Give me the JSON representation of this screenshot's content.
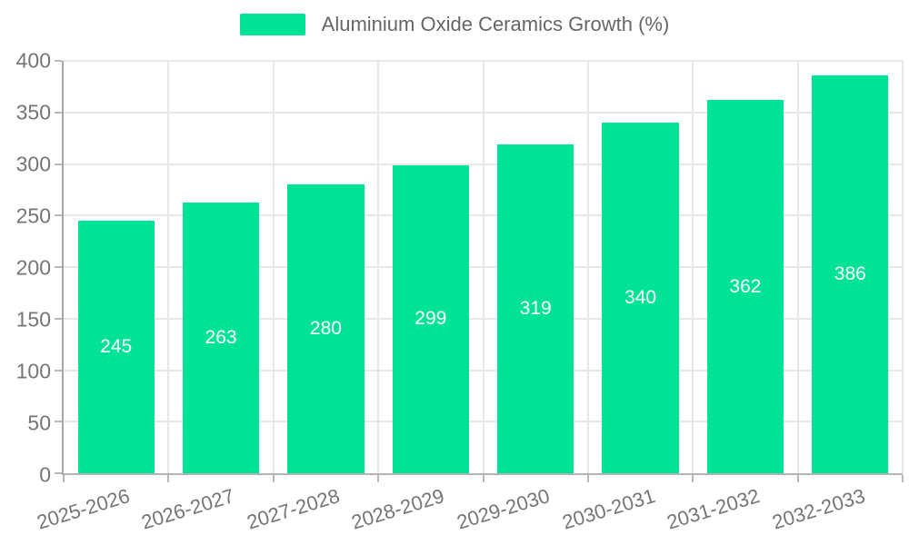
{
  "chart_data": {
    "type": "bar",
    "categories": [
      "2025-2026",
      "2026-2027",
      "2027-2028",
      "2028-2029",
      "2029-2030",
      "2030-2031",
      "2031-2032",
      "2032-2033"
    ],
    "values": [
      245,
      263,
      280,
      299,
      319,
      340,
      362,
      386
    ],
    "title": "",
    "xlabel": "",
    "ylabel": "",
    "ylim": [
      0,
      400
    ],
    "ytick_step": 50,
    "yticks": [
      0,
      50,
      100,
      150,
      200,
      250,
      300,
      350,
      400
    ],
    "grid": true,
    "legend": {
      "position": "top",
      "label": "Aluminium Oxide Ceramics Growth (%)"
    },
    "colors": {
      "bar_fill": "#00E396",
      "bar_value_text": "#ffffff",
      "axis_label_text": "#757575",
      "legend_text": "#666666",
      "gridline": "#e7e7e7",
      "axis_line": "#a6a6a6"
    }
  }
}
